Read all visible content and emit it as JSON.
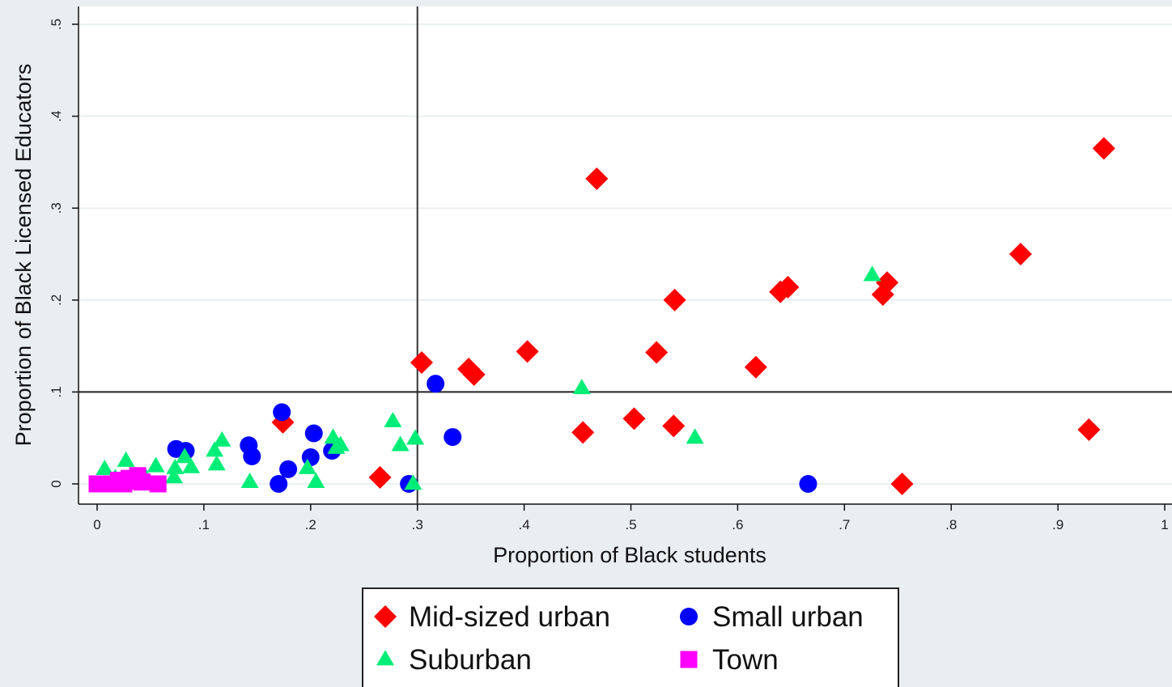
{
  "chart_data": {
    "type": "scatter",
    "xlabel": "Proportion of Black students",
    "ylabel": "Proportion of Black Licensed Educators",
    "xlim": [
      0,
      1
    ],
    "ylim": [
      0,
      0.5
    ],
    "x_ticks": [
      {
        "value": 0,
        "label": "0"
      },
      {
        "value": 0.1,
        "label": ".1"
      },
      {
        "value": 0.2,
        "label": ".2"
      },
      {
        "value": 0.3,
        "label": ".3"
      },
      {
        "value": 0.4,
        "label": ".4"
      },
      {
        "value": 0.5,
        "label": ".5"
      },
      {
        "value": 0.6,
        "label": ".6"
      },
      {
        "value": 0.7,
        "label": ".7"
      },
      {
        "value": 0.8,
        "label": ".8"
      },
      {
        "value": 0.9,
        "label": ".9"
      },
      {
        "value": 1,
        "label": "1"
      }
    ],
    "y_ticks": [
      {
        "value": 0,
        "label": "0"
      },
      {
        "value": 0.1,
        "label": ".1"
      },
      {
        "value": 0.2,
        "label": ".2"
      },
      {
        "value": 0.3,
        "label": ".3"
      },
      {
        "value": 0.4,
        "label": ".4"
      },
      {
        "value": 0.5,
        "label": ".5"
      }
    ],
    "grid": true,
    "reference_lines": {
      "x": 0.3,
      "y": 0.1
    },
    "legend_position": "bottom",
    "series": [
      {
        "name": "Mid-sized urban",
        "marker": "diamond",
        "color": "#ff0000",
        "points": [
          [
            0.174,
            0.067
          ],
          [
            0.265,
            0.007
          ],
          [
            0.304,
            0.132
          ],
          [
            0.348,
            0.125
          ],
          [
            0.353,
            0.119
          ],
          [
            0.403,
            0.144
          ],
          [
            0.455,
            0.056
          ],
          [
            0.468,
            0.332
          ],
          [
            0.503,
            0.071
          ],
          [
            0.524,
            0.143
          ],
          [
            0.54,
            0.063
          ],
          [
            0.541,
            0.2
          ],
          [
            0.617,
            0.127
          ],
          [
            0.64,
            0.209
          ],
          [
            0.647,
            0.214
          ],
          [
            0.736,
            0.206
          ],
          [
            0.74,
            0.219
          ],
          [
            0.754,
            0.0
          ],
          [
            0.865,
            0.25
          ],
          [
            0.929,
            0.059
          ],
          [
            0.943,
            0.365
          ]
        ]
      },
      {
        "name": "Small urban",
        "marker": "circle",
        "color": "#0000ff",
        "points": [
          [
            0.074,
            0.038
          ],
          [
            0.083,
            0.036
          ],
          [
            0.142,
            0.042
          ],
          [
            0.145,
            0.03
          ],
          [
            0.17,
            0.0
          ],
          [
            0.173,
            0.078
          ],
          [
            0.179,
            0.016
          ],
          [
            0.2,
            0.029
          ],
          [
            0.203,
            0.055
          ],
          [
            0.22,
            0.036
          ],
          [
            0.292,
            0.0
          ],
          [
            0.317,
            0.109
          ],
          [
            0.333,
            0.051
          ],
          [
            0.666,
            0.0
          ]
        ]
      },
      {
        "name": "Suburban",
        "marker": "triangle",
        "color": "#00ee77",
        "points": [
          [
            0.007,
            0.016
          ],
          [
            0.017,
            0.006
          ],
          [
            0.027,
            0.025
          ],
          [
            0.045,
            0.008
          ],
          [
            0.055,
            0.019
          ],
          [
            0.072,
            0.007
          ],
          [
            0.073,
            0.017
          ],
          [
            0.082,
            0.029
          ],
          [
            0.088,
            0.018
          ],
          [
            0.11,
            0.036
          ],
          [
            0.112,
            0.021
          ],
          [
            0.117,
            0.047
          ],
          [
            0.143,
            0.002
          ],
          [
            0.197,
            0.017
          ],
          [
            0.205,
            0.002
          ],
          [
            0.221,
            0.05
          ],
          [
            0.224,
            0.039
          ],
          [
            0.228,
            0.042
          ],
          [
            0.277,
            0.068
          ],
          [
            0.284,
            0.042
          ],
          [
            0.296,
            0.0
          ],
          [
            0.298,
            0.049
          ],
          [
            0.454,
            0.104
          ],
          [
            0.56,
            0.05
          ],
          [
            0.726,
            0.227
          ]
        ]
      },
      {
        "name": "Town",
        "marker": "square",
        "color": "#ff00ff",
        "points": [
          [
            0.0,
            0.0
          ],
          [
            0.008,
            0.0
          ],
          [
            0.015,
            0.0
          ],
          [
            0.02,
            0.004
          ],
          [
            0.025,
            0.0
          ],
          [
            0.03,
            0.006
          ],
          [
            0.035,
            0.003
          ],
          [
            0.038,
            0.009
          ],
          [
            0.042,
            0.002
          ],
          [
            0.057,
            0.0
          ]
        ]
      }
    ]
  }
}
